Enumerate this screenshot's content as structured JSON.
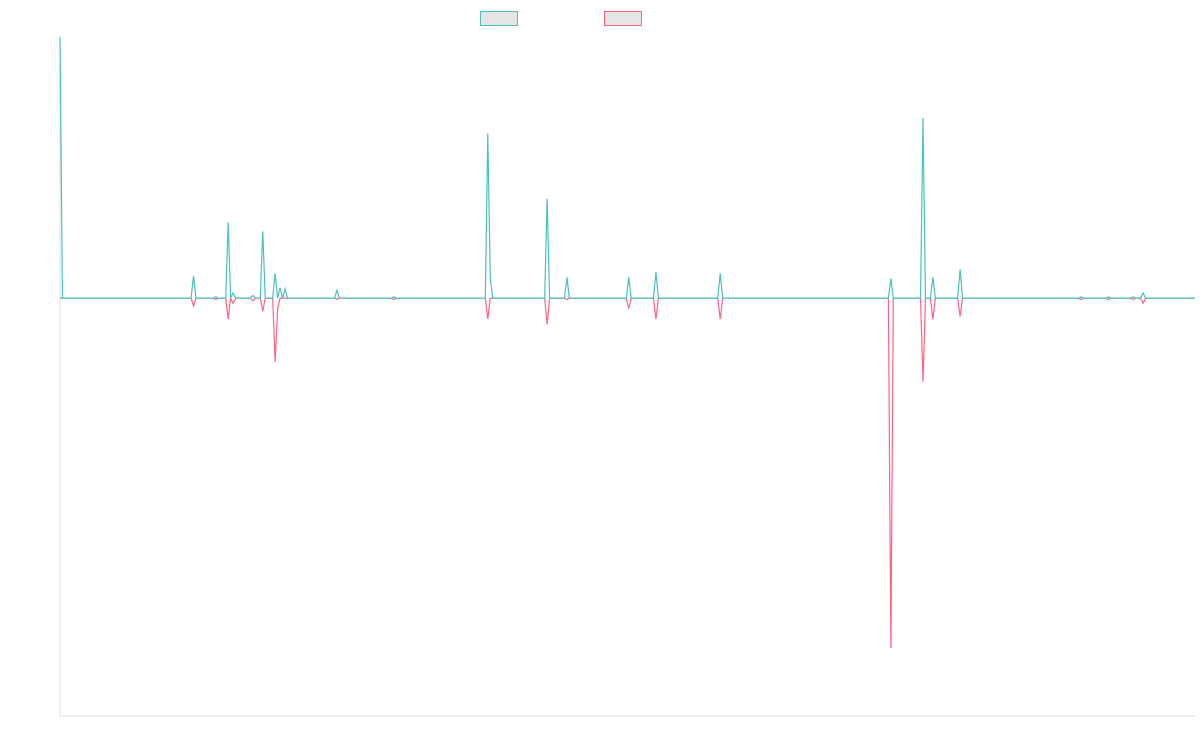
{
  "chart_data": {
    "type": "line",
    "title": "",
    "xlabel": "",
    "ylabel": "",
    "grid": false,
    "legend_position": "top-center",
    "ylim": [
      -1.6,
      1.0
    ],
    "x_points": 460,
    "series": [
      {
        "name": "",
        "color": "#4bc0c0",
        "baseline": 0,
        "values_sparse": [
          [
            0,
            1.0
          ],
          [
            1,
            0
          ],
          [
            53,
            0
          ],
          [
            54,
            0.085
          ],
          [
            55,
            0
          ],
          [
            62,
            0
          ],
          [
            63,
            0.005
          ],
          [
            64,
            0
          ],
          [
            67,
            0
          ],
          [
            68,
            0.29
          ],
          [
            69,
            0
          ],
          [
            70,
            0.02
          ],
          [
            71,
            0
          ],
          [
            77,
            0
          ],
          [
            78,
            0.01
          ],
          [
            79,
            0
          ],
          [
            81,
            0
          ],
          [
            82,
            0.255
          ],
          [
            83,
            0
          ],
          [
            86,
            0
          ],
          [
            87,
            0.095
          ],
          [
            88,
            0
          ],
          [
            89,
            0.04
          ],
          [
            90,
            0
          ],
          [
            91,
            0.035
          ],
          [
            92,
            0
          ],
          [
            111,
            0
          ],
          [
            112,
            0.03
          ],
          [
            113,
            0
          ],
          [
            134,
            0
          ],
          [
            135,
            0.005
          ],
          [
            136,
            0
          ],
          [
            172,
            0
          ],
          [
            173,
            0.63
          ],
          [
            174,
            0.08
          ],
          [
            175,
            0
          ],
          [
            196,
            0
          ],
          [
            197,
            0.38
          ],
          [
            198,
            0
          ],
          [
            204,
            0
          ],
          [
            205,
            0.08
          ],
          [
            206,
            0
          ],
          [
            229,
            0
          ],
          [
            230,
            0.08
          ],
          [
            231,
            0
          ],
          [
            240,
            0
          ],
          [
            241,
            0.1
          ],
          [
            242,
            0
          ],
          [
            266,
            0
          ],
          [
            267,
            0.095
          ],
          [
            268,
            0
          ],
          [
            335,
            0
          ],
          [
            336,
            0.075
          ],
          [
            337,
            0
          ],
          [
            348,
            0
          ],
          [
            349,
            0.69
          ],
          [
            350,
            0
          ],
          [
            352,
            0
          ],
          [
            353,
            0.08
          ],
          [
            354,
            0
          ],
          [
            363,
            0
          ],
          [
            364,
            0.11
          ],
          [
            365,
            0
          ],
          [
            412,
            0
          ],
          [
            413,
            0.005
          ],
          [
            414,
            0
          ],
          [
            423,
            0
          ],
          [
            424,
            0.005
          ],
          [
            425,
            0
          ],
          [
            433,
            0
          ],
          [
            434,
            0.005
          ],
          [
            435,
            0
          ],
          [
            437,
            0
          ],
          [
            438,
            0.02
          ],
          [
            439,
            0
          ]
        ]
      },
      {
        "name": "",
        "color": "#ff6384",
        "baseline": 0,
        "values_sparse": [
          [
            53,
            0
          ],
          [
            54,
            -0.03
          ],
          [
            55,
            0
          ],
          [
            62,
            0
          ],
          [
            63,
            -0.005
          ],
          [
            64,
            0
          ],
          [
            67,
            0
          ],
          [
            68,
            -0.08
          ],
          [
            69,
            0
          ],
          [
            70,
            -0.02
          ],
          [
            71,
            0
          ],
          [
            77,
            0
          ],
          [
            78,
            -0.01
          ],
          [
            79,
            0
          ],
          [
            81,
            0
          ],
          [
            82,
            -0.05
          ],
          [
            83,
            0
          ],
          [
            86,
            0
          ],
          [
            87,
            -0.245
          ],
          [
            88,
            -0.04
          ],
          [
            89,
            0
          ],
          [
            111,
            0
          ],
          [
            112,
            -0.005
          ],
          [
            113,
            0
          ],
          [
            134,
            0
          ],
          [
            135,
            -0.005
          ],
          [
            136,
            0
          ],
          [
            172,
            0
          ],
          [
            173,
            -0.08
          ],
          [
            174,
            0
          ],
          [
            196,
            0
          ],
          [
            197,
            -0.1
          ],
          [
            198,
            0
          ],
          [
            204,
            0
          ],
          [
            205,
            -0.005
          ],
          [
            206,
            0
          ],
          [
            229,
            0
          ],
          [
            230,
            -0.04
          ],
          [
            231,
            0
          ],
          [
            240,
            0
          ],
          [
            241,
            -0.08
          ],
          [
            242,
            0
          ],
          [
            266,
            0
          ],
          [
            267,
            -0.08
          ],
          [
            268,
            0
          ],
          [
            335,
            0
          ],
          [
            336,
            -1.34
          ],
          [
            337,
            0
          ],
          [
            348,
            0
          ],
          [
            349,
            -0.32
          ],
          [
            350,
            0
          ],
          [
            352,
            0
          ],
          [
            353,
            -0.08
          ],
          [
            354,
            0
          ],
          [
            363,
            0
          ],
          [
            364,
            -0.07
          ],
          [
            365,
            0
          ],
          [
            412,
            0
          ],
          [
            413,
            -0.005
          ],
          [
            414,
            0
          ],
          [
            423,
            0
          ],
          [
            424,
            -0.005
          ],
          [
            425,
            0
          ],
          [
            433,
            0
          ],
          [
            434,
            -0.005
          ],
          [
            435,
            0
          ],
          [
            437,
            0
          ],
          [
            438,
            -0.02
          ],
          [
            439,
            0
          ]
        ]
      }
    ],
    "axis_color": "#e0e0e0"
  }
}
